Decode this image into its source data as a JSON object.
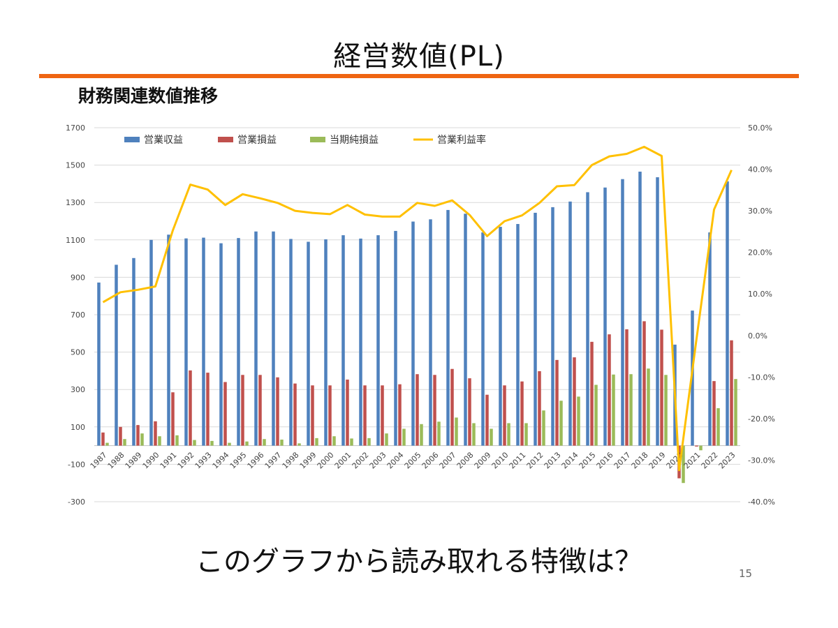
{
  "slide": {
    "title": "経営数値(PL)",
    "subtitle": "財務関連数値推移",
    "question": "このグラフから読み取れる特徴は？",
    "page_number": "15"
  },
  "colors": {
    "title_rule": "#ef6512",
    "revenue": "#4f81bd",
    "operating_profit": "#c0504d",
    "net_profit": "#9bbb59",
    "margin": "#ffc000"
  },
  "chart_data": {
    "type": "bar",
    "grid": "horizontal",
    "legend_position": "top-left",
    "categories": [
      "1987",
      "1988",
      "1989",
      "1990",
      "1991",
      "1992",
      "1993",
      "1994",
      "1995",
      "1996",
      "1997",
      "1998",
      "1999",
      "2000",
      "2001",
      "2002",
      "2003",
      "2004",
      "2005",
      "2006",
      "2007",
      "2008",
      "2009",
      "2010",
      "2011",
      "2012",
      "2013",
      "2014",
      "2015",
      "2016",
      "2017",
      "2018",
      "2019",
      "2020",
      "2021",
      "2022",
      "2023"
    ],
    "y_left": {
      "min": -300,
      "max": 1700,
      "ticks": [
        "-300",
        "-100",
        "100",
        "300",
        "500",
        "700",
        "900",
        "1100",
        "1300",
        "1500",
        "1700"
      ]
    },
    "y_right": {
      "min": -40,
      "max": 50,
      "ticks": [
        "-40.0%",
        "-30.0%",
        "-20.0%",
        "-10.0%",
        "0.0%",
        "10.0%",
        "20.0%",
        "30.0%",
        "40.0%",
        "50.0%"
      ]
    },
    "series": [
      {
        "name": "営業収益",
        "type": "bar",
        "axis": "left",
        "color": "#4f81bd",
        "values": [
          872,
          967,
          1003,
          1100,
          1128,
          1108,
          1112,
          1082,
          1110,
          1145,
          1145,
          1105,
          1090,
          1103,
          1125,
          1107,
          1125,
          1148,
          1198,
          1210,
          1260,
          1240,
          1140,
          1170,
          1185,
          1245,
          1275,
          1305,
          1355,
          1380,
          1425,
          1465,
          1435,
          540,
          722,
          1140,
          1413
        ]
      },
      {
        "name": "営業損益",
        "type": "bar",
        "axis": "left",
        "color": "#c0504d",
        "values": [
          70,
          100,
          110,
          130,
          285,
          402,
          390,
          340,
          378,
          378,
          365,
          332,
          322,
          322,
          353,
          322,
          322,
          328,
          382,
          378,
          410,
          360,
          272,
          322,
          343,
          398,
          458,
          472,
          555,
          595,
          622,
          665,
          620,
          -175,
          -5,
          345,
          563
        ]
      },
      {
        "name": "当期純損益",
        "type": "bar",
        "axis": "left",
        "color": "#9bbb59",
        "values": [
          15,
          35,
          65,
          50,
          55,
          30,
          25,
          15,
          22,
          35,
          32,
          12,
          40,
          50,
          38,
          40,
          65,
          90,
          115,
          128,
          150,
          120,
          90,
          120,
          120,
          188,
          240,
          262,
          325,
          380,
          382,
          412,
          378,
          -200,
          -25,
          200,
          356
        ]
      },
      {
        "name": "営業利益率",
        "type": "line",
        "axis": "right",
        "color": "#ffc000",
        "values": [
          8.0,
          10.4,
          11.0,
          11.8,
          25.3,
          36.3,
          35.1,
          31.4,
          34.0,
          33.0,
          31.9,
          30.0,
          29.5,
          29.2,
          31.4,
          29.1,
          28.6,
          28.6,
          31.9,
          31.2,
          32.5,
          29.0,
          23.9,
          27.5,
          28.9,
          31.9,
          35.9,
          36.2,
          41.0,
          43.1,
          43.7,
          45.4,
          43.2,
          -32.4,
          -0.7,
          30.3,
          39.8
        ]
      }
    ]
  }
}
